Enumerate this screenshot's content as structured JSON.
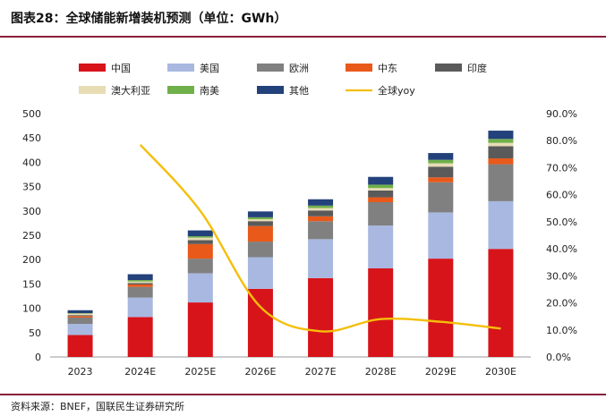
{
  "header": {
    "title": "图表28：全球储能新增装机预测（单位：GWh）"
  },
  "footer": {
    "source": "资料来源：BNEF，国联民生证券研究所"
  },
  "chart_data": {
    "type": "bar",
    "stacked": true,
    "categories": [
      "2023",
      "2024E",
      "2025E",
      "2026E",
      "2027E",
      "2028E",
      "2029E",
      "2030E"
    ],
    "ylim": [
      0,
      500
    ],
    "yticks": [
      "0",
      "50",
      "100",
      "150",
      "200",
      "250",
      "300",
      "350",
      "400",
      "450",
      "500"
    ],
    "y2lim": [
      0,
      90
    ],
    "y2ticks": [
      "0.0%",
      "10.0%",
      "20.0%",
      "30.0%",
      "40.0%",
      "50.0%",
      "60.0%",
      "70.0%",
      "80.0%",
      "90.0%"
    ],
    "legend_position": "top",
    "series": [
      {
        "name": "中国",
        "color": "#d7141a",
        "values": [
          45,
          82,
          112,
          140,
          162,
          182,
          202,
          222
        ]
      },
      {
        "name": "美国",
        "color": "#a8b8e0",
        "values": [
          23,
          40,
          60,
          65,
          80,
          88,
          95,
          98
        ]
      },
      {
        "name": "欧洲",
        "color": "#808080",
        "values": [
          13,
          22,
          30,
          32,
          37,
          48,
          62,
          76
        ]
      },
      {
        "name": "中东",
        "color": "#e8591a",
        "values": [
          3,
          5,
          30,
          32,
          10,
          10,
          10,
          12
        ]
      },
      {
        "name": "印度",
        "color": "#5a5a5a",
        "values": [
          2,
          3,
          8,
          10,
          12,
          14,
          22,
          25
        ]
      },
      {
        "name": "澳大利亚",
        "color": "#e8dcb5",
        "values": [
          3,
          3,
          5,
          4,
          5,
          5,
          7,
          7
        ]
      },
      {
        "name": "南美",
        "color": "#6fb04a",
        "values": [
          1,
          3,
          3,
          4,
          5,
          7,
          7,
          8
        ]
      },
      {
        "name": "其他",
        "color": "#23417a",
        "values": [
          6,
          12,
          12,
          12,
          13,
          16,
          14,
          17
        ]
      }
    ],
    "line_series": {
      "name": "全球yoy",
      "color": "#f5be0a",
      "axis": "right",
      "values": [
        null,
        78.5,
        54,
        18.5,
        9.5,
        14,
        13,
        10.5
      ]
    }
  }
}
